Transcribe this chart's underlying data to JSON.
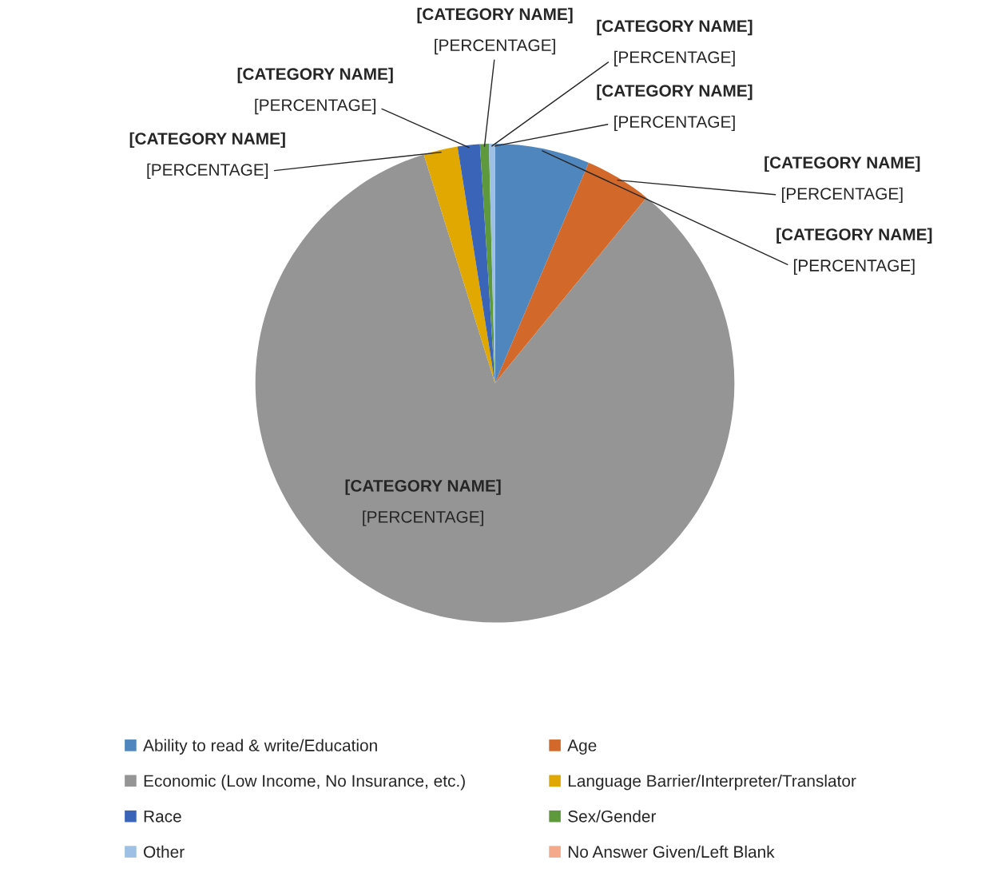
{
  "chart_data": {
    "type": "pie",
    "categories": [
      "Ability to read & write/Education",
      "Age",
      "Economic (Low Income, No Insurance, etc.)",
      "Language Barrier/Interpreter/Translator",
      "Race",
      "Sex/Gender",
      "Other",
      "No Answer Given/Left Blank"
    ],
    "values": [
      6.4,
      4.5,
      84.3,
      2.3,
      1.5,
      0.6,
      0.4,
      0
    ],
    "colors": [
      "#4f86bd",
      "#d2692a",
      "#959595",
      "#e0a800",
      "#3a64b8",
      "#5f993d",
      "#9dc0e4",
      "#f4a98a"
    ],
    "value_labels": [
      "[CATEGORY NAME]\n[PERCENTAGE]",
      "[CATEGORY NAME]\n[PERCENTAGE]",
      "[CATEGORY NAME]\n[PERCENTAGE]",
      "[CATEGORY NAME]\n[PERCENTAGE]",
      "[CATEGORY NAME]\n[PERCENTAGE]",
      "[CATEGORY NAME]\n[PERCENTAGE]",
      "[CATEGORY NAME]\n[PERCENTAGE]",
      "[CATEGORY NAME]\n[PERCENTAGE]"
    ],
    "legend": "bottom"
  }
}
